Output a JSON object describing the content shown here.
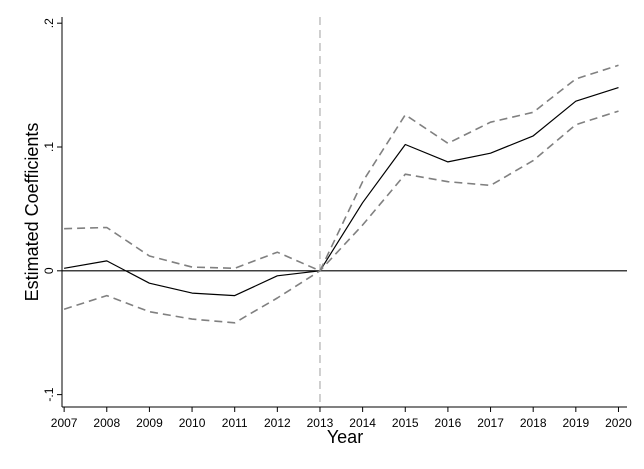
{
  "chart_data": {
    "type": "line",
    "title": "",
    "xlabel": "Year",
    "ylabel": "Estimated Coefficients",
    "x": [
      2007,
      2008,
      2009,
      2010,
      2011,
      2012,
      2013,
      2014,
      2015,
      2016,
      2017,
      2018,
      2019,
      2020
    ],
    "xticks": [
      "2007",
      "2008",
      "2009",
      "2010",
      "2011",
      "2012",
      "2013",
      "2014",
      "2015",
      "2016",
      "2017",
      "2018",
      "2019",
      "2020"
    ],
    "yticks": [
      {
        "value": -0.1,
        "label": "-.1"
      },
      {
        "value": 0,
        "label": "0"
      },
      {
        "value": 0.1,
        "label": ".1"
      },
      {
        "value": 0.2,
        "label": ".2"
      }
    ],
    "xlim": [
      2006.95,
      2020.2
    ],
    "ylim": [
      -0.11,
      0.205
    ],
    "series": [
      {
        "style": "solid",
        "color": "#000000",
        "values": [
          0.002,
          0.008,
          -0.01,
          -0.018,
          -0.02,
          -0.004,
          0.0,
          0.055,
          0.102,
          0.088,
          0.095,
          0.109,
          0.137,
          0.148
        ]
      },
      {
        "style": "dashed",
        "color": "#808080",
        "values": [
          0.034,
          0.035,
          0.012,
          0.003,
          0.002,
          0.015,
          0.0,
          0.072,
          0.126,
          0.103,
          0.12,
          0.128,
          0.155,
          0.166
        ]
      },
      {
        "style": "dashed",
        "color": "#808080",
        "values": [
          -0.031,
          -0.02,
          -0.033,
          -0.039,
          -0.042,
          -0.022,
          0.0,
          0.037,
          0.078,
          0.072,
          0.069,
          0.089,
          0.118,
          0.129
        ]
      }
    ],
    "reference_lines": [
      {
        "axis": "y",
        "value": 0,
        "style": "solid",
        "color": "#000000"
      },
      {
        "axis": "x",
        "value": 2013,
        "style": "dashed",
        "color": "#b0b0b0"
      }
    ],
    "grid": false,
    "legend": "none"
  }
}
